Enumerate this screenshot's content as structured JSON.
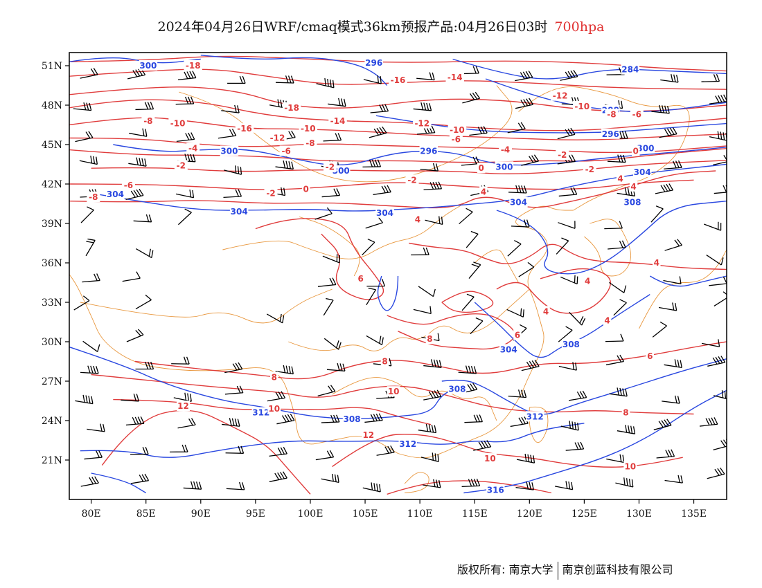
{
  "title": {
    "main": "2024年04月26日WRF/cmaq模式36km预报产品:04月26日03时",
    "level": "700hpa"
  },
  "axes": {
    "lat_labels": [
      "51N",
      "48N",
      "45N",
      "42N",
      "39N",
      "36N",
      "33N",
      "30N",
      "27N",
      "24N",
      "21N"
    ],
    "lon_labels": [
      "80E",
      "85E",
      "90E",
      "95E",
      "100E",
      "105E",
      "110E",
      "115E",
      "120E",
      "125E",
      "130E",
      "135E"
    ]
  },
  "colors": {
    "temperature": "#e03c3c",
    "height": "#2a48e0",
    "boundary": "#e8963c",
    "wind": "#000000"
  },
  "map_data": {
    "type": "contour-map",
    "lat_range": [
      18,
      52
    ],
    "lon_range": [
      78,
      138
    ],
    "height_labels": [
      {
        "text": "296",
        "lon": 105.8,
        "lat": 51.2
      },
      {
        "text": "284",
        "lon": 129.2,
        "lat": 50.7
      },
      {
        "text": "288",
        "lon": 127.4,
        "lat": 47.6
      },
      {
        "text": "296",
        "lon": 127.4,
        "lat": 45.8
      },
      {
        "text": "300",
        "lon": 85.2,
        "lat": 51.0
      },
      {
        "text": "300",
        "lon": 92.6,
        "lat": 44.5
      },
      {
        "text": "296",
        "lon": 110.8,
        "lat": 44.5
      },
      {
        "text": "300",
        "lon": 102.8,
        "lat": 43.0
      },
      {
        "text": "300",
        "lon": 117.7,
        "lat": 43.3
      },
      {
        "text": "300",
        "lon": 130.6,
        "lat": 44.7
      },
      {
        "text": "304",
        "lon": 82.2,
        "lat": 41.2
      },
      {
        "text": "304",
        "lon": 93.5,
        "lat": 39.9
      },
      {
        "text": "304",
        "lon": 106.8,
        "lat": 39.8
      },
      {
        "text": "304",
        "lon": 119.0,
        "lat": 40.6
      },
      {
        "text": "304",
        "lon": 130.3,
        "lat": 42.9
      },
      {
        "text": "308",
        "lon": 129.4,
        "lat": 40.6
      },
      {
        "text": "308",
        "lon": 123.8,
        "lat": 29.8
      },
      {
        "text": "304",
        "lon": 118.1,
        "lat": 29.4
      },
      {
        "text": "308",
        "lon": 113.4,
        "lat": 26.4
      },
      {
        "text": "312",
        "lon": 95.5,
        "lat": 24.6
      },
      {
        "text": "308",
        "lon": 103.8,
        "lat": 24.1
      },
      {
        "text": "312",
        "lon": 120.5,
        "lat": 24.3
      },
      {
        "text": "312",
        "lon": 108.9,
        "lat": 22.2
      },
      {
        "text": "316",
        "lon": 116.9,
        "lat": 18.7
      }
    ],
    "temperature_labels": [
      {
        "text": "-18",
        "lon": 89.3,
        "lat": 51.0
      },
      {
        "text": "-16",
        "lon": 108.0,
        "lat": 49.9
      },
      {
        "text": "-14",
        "lon": 113.2,
        "lat": 50.1
      },
      {
        "text": "-12",
        "lon": 122.8,
        "lat": 48.7
      },
      {
        "text": "-10",
        "lon": 124.8,
        "lat": 47.9
      },
      {
        "text": "-8",
        "lon": 127.5,
        "lat": 47.3
      },
      {
        "text": "-6",
        "lon": 129.8,
        "lat": 47.3
      },
      {
        "text": "-18",
        "lon": 98.3,
        "lat": 47.8
      },
      {
        "text": "-16",
        "lon": 94.0,
        "lat": 46.2
      },
      {
        "text": "-14",
        "lon": 102.5,
        "lat": 46.8
      },
      {
        "text": "-12",
        "lon": 110.2,
        "lat": 46.6
      },
      {
        "text": "-10",
        "lon": 99.8,
        "lat": 46.2
      },
      {
        "text": "-12",
        "lon": 97.0,
        "lat": 45.5
      },
      {
        "text": "-8",
        "lon": 85.2,
        "lat": 46.8
      },
      {
        "text": "-10",
        "lon": 87.9,
        "lat": 46.6
      },
      {
        "text": "-8",
        "lon": 100.0,
        "lat": 45.1
      },
      {
        "text": "-6",
        "lon": 97.8,
        "lat": 44.5
      },
      {
        "text": "-10",
        "lon": 113.4,
        "lat": 46.1
      },
      {
        "text": "-6",
        "lon": 113.3,
        "lat": 45.4
      },
      {
        "text": "-4",
        "lon": 89.3,
        "lat": 44.7
      },
      {
        "text": "-4",
        "lon": 117.8,
        "lat": 44.6
      },
      {
        "text": "-2",
        "lon": 88.2,
        "lat": 43.4
      },
      {
        "text": "-2",
        "lon": 101.8,
        "lat": 43.3
      },
      {
        "text": "-2",
        "lon": 123.0,
        "lat": 44.2
      },
      {
        "text": "-2",
        "lon": 125.5,
        "lat": 43.1
      },
      {
        "text": "0",
        "lon": 115.6,
        "lat": 43.2
      },
      {
        "text": "0",
        "lon": 129.7,
        "lat": 44.5
      },
      {
        "text": "-2",
        "lon": 109.3,
        "lat": 42.3
      },
      {
        "text": "-6",
        "lon": 83.4,
        "lat": 41.9
      },
      {
        "text": "-8",
        "lon": 80.2,
        "lat": 41.0
      },
      {
        "text": "-2",
        "lon": 96.4,
        "lat": 41.3
      },
      {
        "text": "0",
        "lon": 99.6,
        "lat": 41.6
      },
      {
        "text": "4",
        "lon": 128.3,
        "lat": 42.4
      },
      {
        "text": "4",
        "lon": 129.5,
        "lat": 41.8
      },
      {
        "text": "4",
        "lon": 115.8,
        "lat": 41.4
      },
      {
        "text": "4",
        "lon": 109.8,
        "lat": 39.3
      },
      {
        "text": "4",
        "lon": 131.6,
        "lat": 36.0
      },
      {
        "text": "4",
        "lon": 125.3,
        "lat": 34.6
      },
      {
        "text": "4",
        "lon": 121.5,
        "lat": 32.3
      },
      {
        "text": "4",
        "lon": 127.1,
        "lat": 31.6
      },
      {
        "text": "6",
        "lon": 104.6,
        "lat": 34.8
      },
      {
        "text": "6",
        "lon": 118.9,
        "lat": 30.5
      },
      {
        "text": "8",
        "lon": 110.9,
        "lat": 30.2
      },
      {
        "text": "6",
        "lon": 131.0,
        "lat": 28.9
      },
      {
        "text": "8",
        "lon": 106.8,
        "lat": 28.5
      },
      {
        "text": "8",
        "lon": 96.7,
        "lat": 27.3
      },
      {
        "text": "10",
        "lon": 107.6,
        "lat": 26.2
      },
      {
        "text": "10",
        "lon": 96.7,
        "lat": 24.9
      },
      {
        "text": "12",
        "lon": 88.4,
        "lat": 25.1
      },
      {
        "text": "12",
        "lon": 105.3,
        "lat": 22.9
      },
      {
        "text": "8",
        "lon": 128.8,
        "lat": 24.6
      },
      {
        "text": "10",
        "lon": 116.4,
        "lat": 21.1
      },
      {
        "text": "10",
        "lon": 129.2,
        "lat": 20.5
      }
    ]
  },
  "footer": {
    "copyright_label": "版权所有:",
    "org1": "南京大学",
    "org2": "南京创蓝科技有限公司"
  }
}
